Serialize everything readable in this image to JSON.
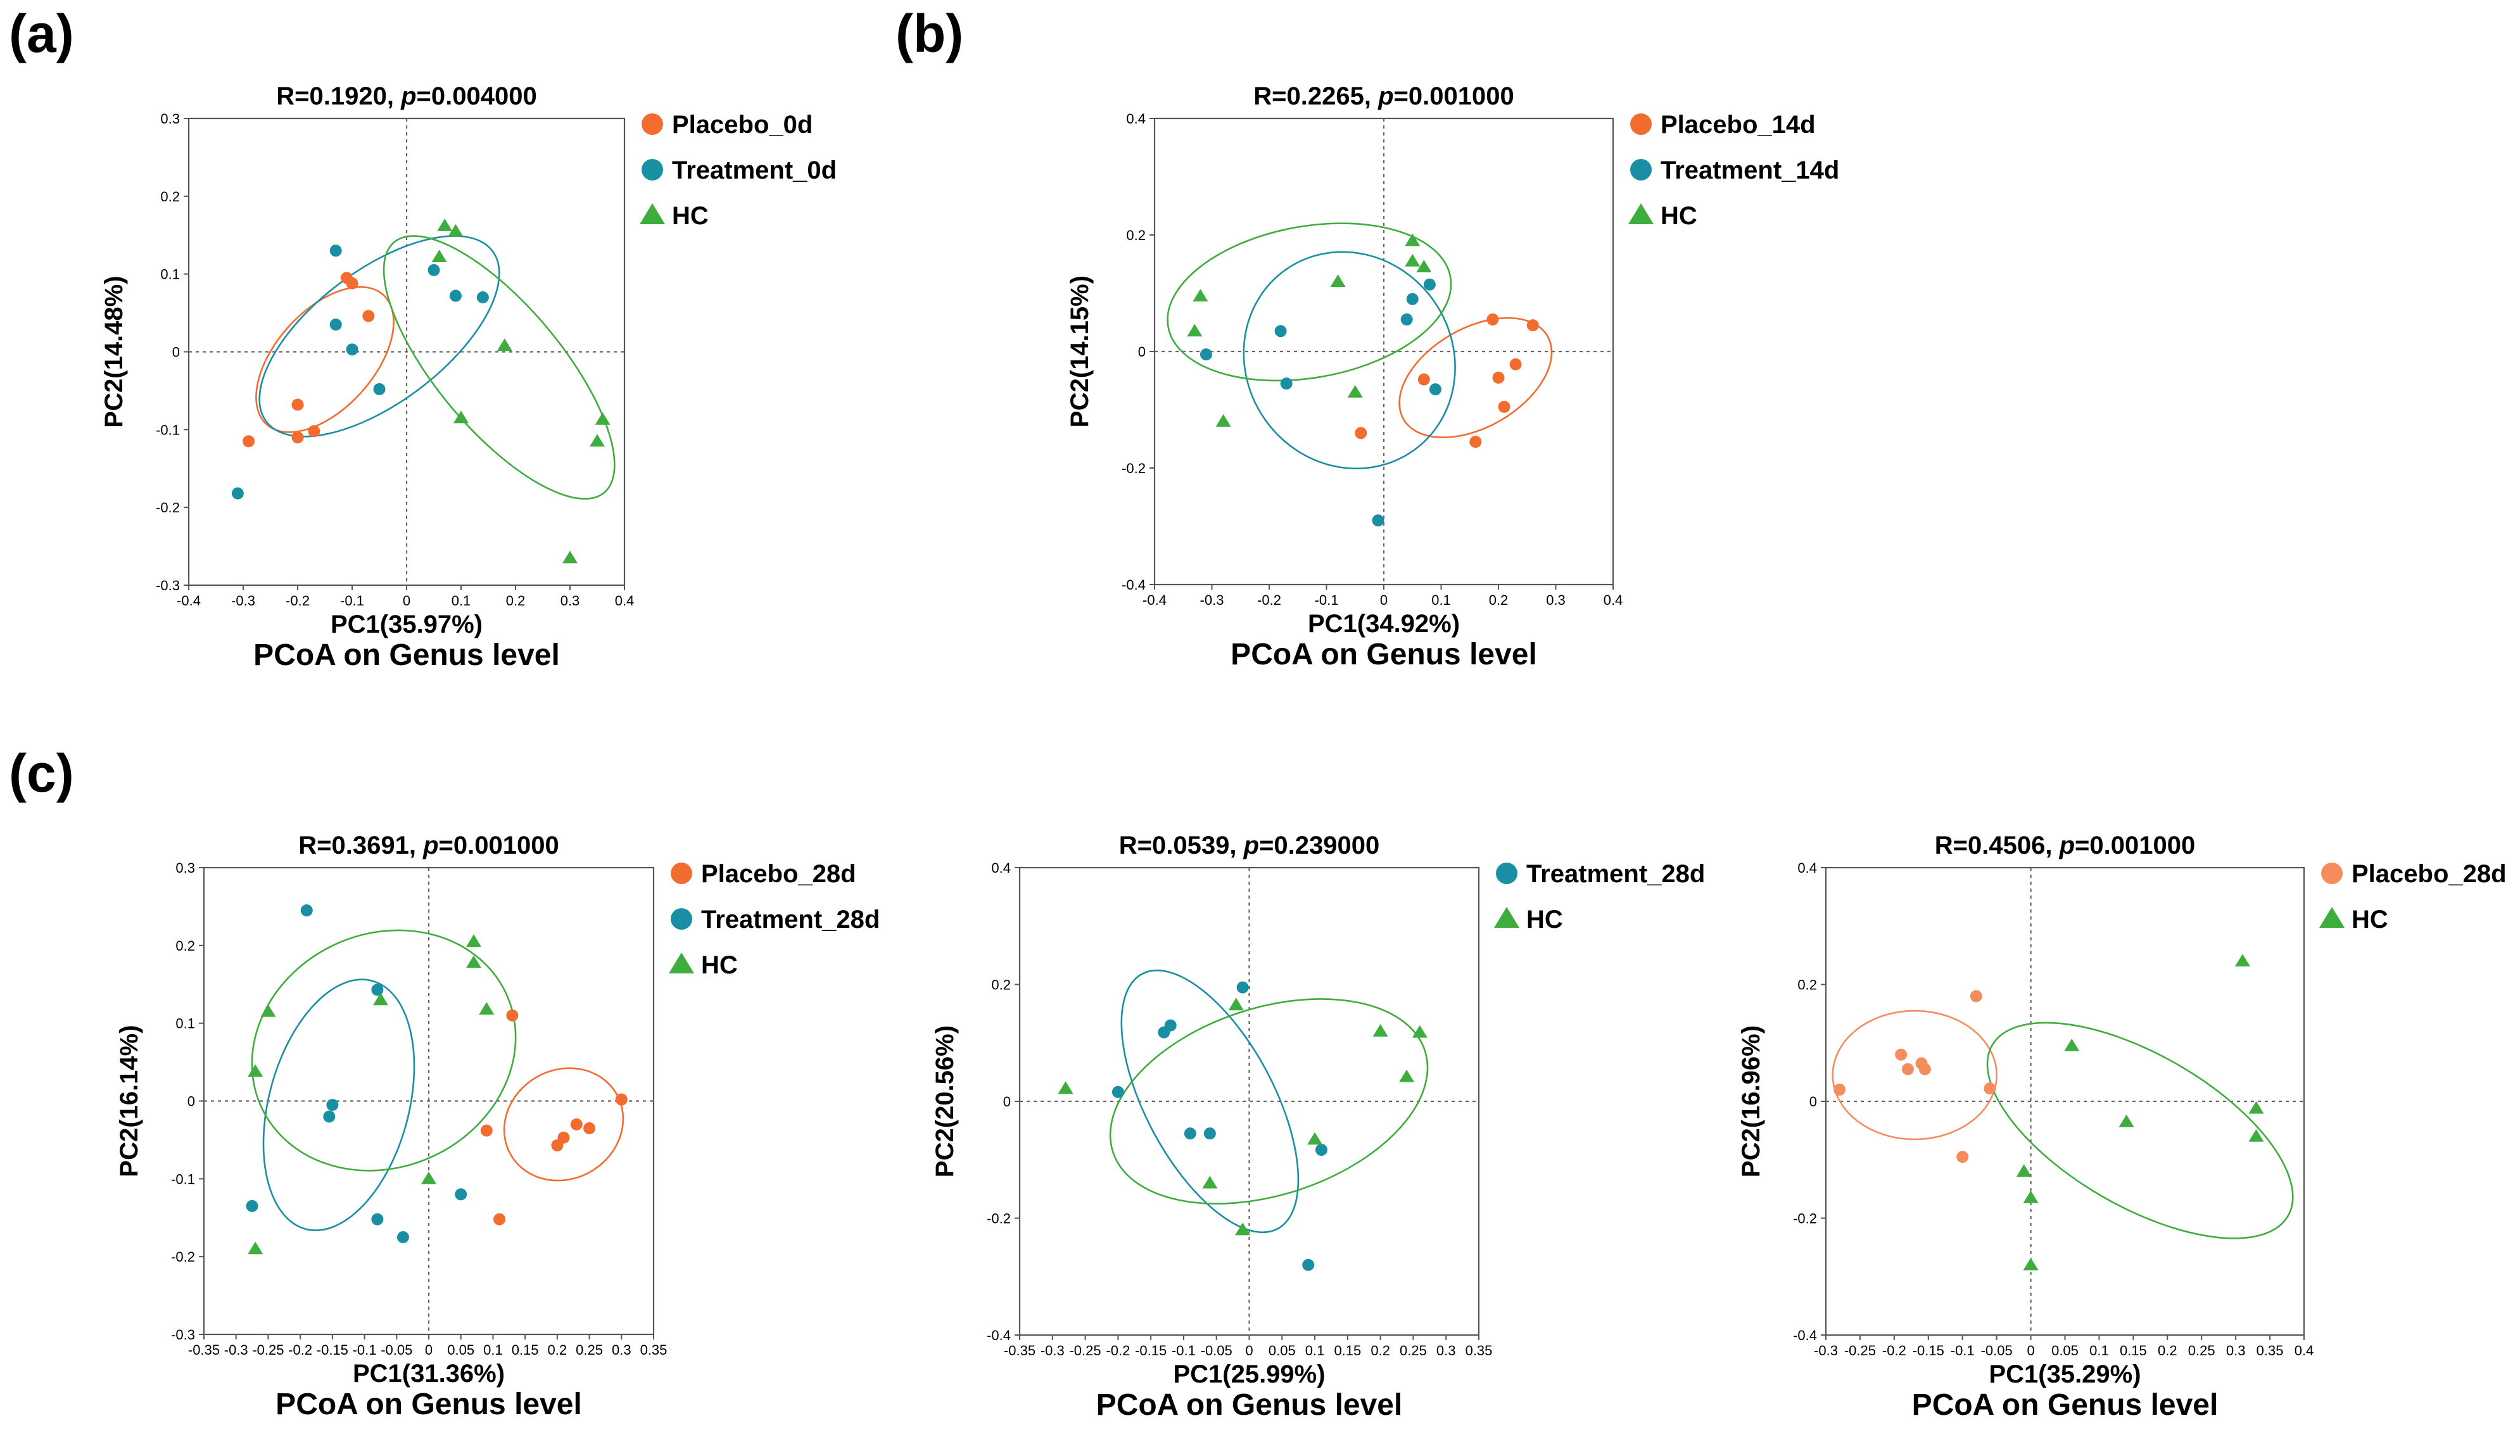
{
  "figure": {
    "panel_labels": [
      "(a)",
      "(b)",
      "(c)"
    ],
    "colors": {
      "placebo": "#f26b2f",
      "placebo_light": "#f58c5d",
      "treatment": "#1a8fa3",
      "hc": "#3ead3e"
    }
  },
  "chart_data": [
    {
      "type": "scatter",
      "title": {
        "prefix": "R=0.1920, ",
        "p_symbol": "p",
        "p_value": "=0.004000"
      },
      "xlabel": "PC1(35.97%)",
      "ylabel": "PC2(14.48%)",
      "footer": "PCoA on Genus level",
      "xlim": [
        -0.4,
        0.4
      ],
      "ylim": [
        -0.3,
        0.3
      ],
      "xticks": [
        -0.4,
        -0.3,
        -0.2,
        -0.1,
        0,
        0.1,
        0.2,
        0.3,
        0.4
      ],
      "xtick_labels": [
        "-0.4",
        "-0.3",
        "-0.2",
        "-0.1",
        "0",
        "0.1",
        "0.2",
        "0.3",
        "0.4"
      ],
      "yticks": [
        -0.3,
        -0.2,
        -0.1,
        0,
        0.1,
        0.2,
        0.3
      ],
      "ytick_labels": [
        "-0.3",
        "-0.2",
        "-0.1",
        "0",
        "0.1",
        "0.2",
        "0.3"
      ],
      "grid": false,
      "legend_position": "right",
      "series": [
        {
          "name": "Placebo_0d",
          "color": "#f26b2f",
          "marker": "circle",
          "points": [
            [
              -0.11,
              0.095
            ],
            [
              -0.1,
              0.088
            ],
            [
              -0.07,
              0.046
            ],
            [
              -0.29,
              -0.115
            ],
            [
              -0.2,
              -0.068
            ],
            [
              -0.2,
              -0.11
            ],
            [
              -0.17,
              -0.102
            ]
          ],
          "ellipse": {
            "cx": -0.15,
            "cy": -0.01,
            "rx": 0.16,
            "ry": 0.063,
            "angle_deg": 48
          }
        },
        {
          "name": "Treatment_0d",
          "color": "#1a8fa3",
          "marker": "circle",
          "points": [
            [
              -0.13,
              0.13
            ],
            [
              -0.13,
              0.035
            ],
            [
              -0.1,
              0.003
            ],
            [
              -0.05,
              -0.048
            ],
            [
              0.05,
              0.105
            ],
            [
              0.09,
              0.072
            ],
            [
              0.14,
              0.07
            ],
            [
              -0.31,
              -0.182
            ]
          ],
          "ellipse": {
            "cx": -0.05,
            "cy": 0.02,
            "rx": 0.26,
            "ry": 0.085,
            "angle_deg": 37
          }
        },
        {
          "name": "HC",
          "color": "#3ead3e",
          "marker": "triangle",
          "points": [
            [
              0.06,
              0.122
            ],
            [
              0.07,
              0.162
            ],
            [
              0.09,
              0.155
            ],
            [
              0.18,
              0.008
            ],
            [
              0.1,
              -0.085
            ],
            [
              0.3,
              -0.265
            ],
            [
              0.35,
              -0.115
            ],
            [
              0.36,
              -0.087
            ]
          ],
          "ellipse": {
            "cx": 0.17,
            "cy": -0.02,
            "rx": 0.3,
            "ry": 0.08,
            "angle_deg": -50
          }
        }
      ]
    },
    {
      "type": "scatter",
      "title": {
        "prefix": "R=0.2265, ",
        "p_symbol": "p",
        "p_value": "=0.001000"
      },
      "xlabel": "PC1(34.92%)",
      "ylabel": "PC2(14.15%)",
      "footer": "PCoA on Genus level",
      "xlim": [
        -0.4,
        0.4
      ],
      "ylim": [
        -0.4,
        0.4
      ],
      "xticks": [
        -0.4,
        -0.3,
        -0.2,
        -0.1,
        0,
        0.1,
        0.2,
        0.3,
        0.4
      ],
      "xtick_labels": [
        "-0.4",
        "-0.3",
        "-0.2",
        "-0.1",
        "0",
        "0.1",
        "0.2",
        "0.3",
        "0.4"
      ],
      "yticks": [
        -0.4,
        -0.2,
        0,
        0.2,
        0.4
      ],
      "ytick_labels": [
        "-0.4",
        "-0.2",
        "0",
        "0.2",
        "0.4"
      ],
      "grid": false,
      "legend_position": "right",
      "series": [
        {
          "name": "Placebo_14d",
          "color": "#f26b2f",
          "marker": "circle",
          "points": [
            [
              0.19,
              0.055
            ],
            [
              0.26,
              0.045
            ],
            [
              0.23,
              -0.022
            ],
            [
              0.2,
              -0.045
            ],
            [
              0.21,
              -0.095
            ],
            [
              0.07,
              -0.048
            ],
            [
              0.16,
              -0.155
            ],
            [
              -0.04,
              -0.14
            ]
          ],
          "ellipse": {
            "cx": 0.16,
            "cy": -0.045,
            "rx": 0.145,
            "ry": 0.085,
            "angle_deg": 30
          }
        },
        {
          "name": "Treatment_14d",
          "color": "#1a8fa3",
          "marker": "circle",
          "points": [
            [
              -0.31,
              -0.005
            ],
            [
              -0.18,
              0.035
            ],
            [
              -0.17,
              -0.055
            ],
            [
              0.04,
              0.055
            ],
            [
              0.05,
              0.09
            ],
            [
              0.08,
              0.115
            ],
            [
              0.09,
              -0.065
            ],
            [
              -0.01,
              -0.29
            ]
          ],
          "ellipse": {
            "cx": -0.06,
            "cy": -0.015,
            "rx": 0.18,
            "ry": 0.19,
            "angle_deg": 35
          }
        },
        {
          "name": "HC",
          "color": "#3ead3e",
          "marker": "triangle",
          "points": [
            [
              -0.32,
              0.095
            ],
            [
              -0.33,
              0.035
            ],
            [
              -0.28,
              -0.12
            ],
            [
              -0.08,
              0.12
            ],
            [
              -0.05,
              -0.07
            ],
            [
              0.05,
              0.19
            ],
            [
              0.05,
              0.155
            ],
            [
              0.07,
              0.145
            ]
          ],
          "ellipse": {
            "cx": -0.13,
            "cy": 0.085,
            "rx": 0.25,
            "ry": 0.13,
            "angle_deg": 10
          }
        }
      ]
    },
    {
      "type": "scatter",
      "title": {
        "prefix": "R=0.3691, ",
        "p_symbol": "p",
        "p_value": "=0.001000"
      },
      "xlabel": "PC1(31.36%)",
      "ylabel": "PC2(16.14%)",
      "footer": "PCoA on Genus level",
      "xlim": [
        -0.35,
        0.35
      ],
      "ylim": [
        -0.3,
        0.3
      ],
      "xticks": [
        -0.35,
        -0.3,
        -0.25,
        -0.2,
        -0.15,
        -0.1,
        -0.05,
        0,
        0.05,
        0.1,
        0.15,
        0.2,
        0.25,
        0.3,
        0.35
      ],
      "xtick_labels": [
        "-0.35",
        "-0.3",
        "-0.25",
        "-0.2",
        "-0.15",
        "-0.1",
        "-0.05",
        "0",
        "0.05",
        "0.1",
        "0.15",
        "0.2",
        "0.25",
        "0.3",
        "0.35"
      ],
      "yticks": [
        -0.3,
        -0.2,
        -0.1,
        0,
        0.1,
        0.2,
        0.3
      ],
      "ytick_labels": [
        "-0.3",
        "-0.2",
        "-0.1",
        "0",
        "0.1",
        "0.2",
        "0.3"
      ],
      "grid": false,
      "legend_position": "right",
      "series": [
        {
          "name": "Placebo_28d",
          "color": "#f26b2f",
          "marker": "circle",
          "points": [
            [
              0.13,
              0.11
            ],
            [
              0.3,
              0.002
            ],
            [
              0.23,
              -0.03
            ],
            [
              0.25,
              -0.035
            ],
            [
              0.21,
              -0.047
            ],
            [
              0.2,
              -0.057
            ],
            [
              0.09,
              -0.038
            ],
            [
              0.11,
              -0.152
            ]
          ],
          "ellipse": {
            "cx": 0.21,
            "cy": -0.03,
            "rx": 0.095,
            "ry": 0.07,
            "angle_deg": 30
          }
        },
        {
          "name": "Treatment_28d",
          "color": "#1a8fa3",
          "marker": "circle",
          "points": [
            [
              -0.19,
              0.245
            ],
            [
              -0.08,
              0.143
            ],
            [
              -0.15,
              -0.005
            ],
            [
              -0.155,
              -0.02
            ],
            [
              -0.275,
              -0.135
            ],
            [
              -0.08,
              -0.152
            ],
            [
              -0.04,
              -0.175
            ],
            [
              0.05,
              -0.12
            ]
          ],
          "ellipse": {
            "cx": -0.14,
            "cy": -0.005,
            "rx": 0.2,
            "ry": 0.09,
            "angle_deg": 75
          }
        },
        {
          "name": "HC",
          "color": "#3ead3e",
          "marker": "triangle",
          "points": [
            [
              -0.25,
              0.115
            ],
            [
              -0.27,
              0.038
            ],
            [
              -0.27,
              -0.19
            ],
            [
              -0.075,
              0.13
            ],
            [
              0.07,
              0.205
            ],
            [
              0.07,
              0.178
            ],
            [
              0.09,
              0.118
            ],
            [
              0.0,
              -0.1
            ]
          ],
          "ellipse": {
            "cx": -0.07,
            "cy": 0.065,
            "rx": 0.21,
            "ry": 0.15,
            "angle_deg": 25
          }
        }
      ]
    },
    {
      "type": "scatter",
      "title": {
        "prefix": "R=0.0539, ",
        "p_symbol": "p",
        "p_value": "=0.239000"
      },
      "xlabel": "PC1(25.99%)",
      "ylabel": "PC2(20.56%)",
      "footer": "PCoA on Genus level",
      "xlim": [
        -0.35,
        0.35
      ],
      "ylim": [
        -0.4,
        0.4
      ],
      "xticks": [
        -0.35,
        -0.3,
        -0.25,
        -0.2,
        -0.15,
        -0.1,
        -0.05,
        0,
        0.05,
        0.1,
        0.15,
        0.2,
        0.25,
        0.3,
        0.35
      ],
      "xtick_labels": [
        "-0.35",
        "-0.3",
        "-0.25",
        "-0.2",
        "-0.15",
        "-0.1",
        "-0.05",
        "0",
        "0.05",
        "0.1",
        "0.15",
        "0.2",
        "0.25",
        "0.3",
        "0.35"
      ],
      "yticks": [
        -0.4,
        -0.2,
        0,
        0.2,
        0.4
      ],
      "ytick_labels": [
        "-0.4",
        "-0.2",
        "0",
        "0.2",
        "0.4"
      ],
      "grid": false,
      "legend_position": "right",
      "series": [
        {
          "name": "Treatment_28d",
          "color": "#1a8fa3",
          "marker": "circle",
          "points": [
            [
              -0.01,
              0.195
            ],
            [
              -0.12,
              0.13
            ],
            [
              -0.13,
              0.118
            ],
            [
              -0.2,
              0.016
            ],
            [
              -0.09,
              -0.055
            ],
            [
              -0.06,
              -0.055
            ],
            [
              0.11,
              -0.083
            ],
            [
              0.09,
              -0.28
            ]
          ],
          "ellipse": {
            "cx": -0.06,
            "cy": 0.0,
            "rx": 0.22,
            "ry": 0.11,
            "angle_deg": -62
          }
        },
        {
          "name": "HC",
          "color": "#3ead3e",
          "marker": "triangle",
          "points": [
            [
              -0.28,
              0.022
            ],
            [
              -0.02,
              0.165
            ],
            [
              0.2,
              0.12
            ],
            [
              0.26,
              0.118
            ],
            [
              0.24,
              0.042
            ],
            [
              0.1,
              -0.065
            ],
            [
              -0.06,
              -0.14
            ],
            [
              -0.01,
              -0.22
            ]
          ],
          "ellipse": {
            "cx": 0.03,
            "cy": 0.0,
            "rx": 0.25,
            "ry": 0.16,
            "angle_deg": 18
          }
        }
      ]
    },
    {
      "type": "scatter",
      "title": {
        "prefix": "R=0.4506, ",
        "p_symbol": "p",
        "p_value": "=0.001000"
      },
      "xlabel": "PC1(35.29%)",
      "ylabel": "PC2(16.96%)",
      "footer": "PCoA on Genus level",
      "xlim": [
        -0.3,
        0.4
      ],
      "ylim": [
        -0.4,
        0.4
      ],
      "xticks": [
        -0.3,
        -0.25,
        -0.2,
        -0.15,
        -0.1,
        -0.05,
        0,
        0.05,
        0.1,
        0.15,
        0.2,
        0.25,
        0.3,
        0.35,
        0.4
      ],
      "xtick_labels": [
        "-0.3",
        "-0.25",
        "-0.2",
        "-0.15",
        "-0.1",
        "-0.05",
        "0",
        "0.05",
        "0.1",
        "0.15",
        "0.2",
        "0.25",
        "0.3",
        "0.35",
        "0.4"
      ],
      "yticks": [
        -0.4,
        -0.2,
        0,
        0.2,
        0.4
      ],
      "ytick_labels": [
        "-0.4",
        "-0.2",
        "0",
        "0.2",
        "0.4"
      ],
      "grid": false,
      "legend_position": "right",
      "series": [
        {
          "name": "Placebo_28d",
          "color": "#f58c5d",
          "marker": "circle",
          "points": [
            [
              -0.28,
              0.02
            ],
            [
              -0.19,
              0.08
            ],
            [
              -0.18,
              0.055
            ],
            [
              -0.16,
              0.065
            ],
            [
              -0.155,
              0.055
            ],
            [
              -0.08,
              0.18
            ],
            [
              -0.06,
              0.022
            ],
            [
              -0.1,
              -0.095
            ]
          ],
          "ellipse": {
            "cx": -0.17,
            "cy": 0.045,
            "rx": 0.12,
            "ry": 0.11,
            "angle_deg": 0
          }
        },
        {
          "name": "HC",
          "color": "#3ead3e",
          "marker": "triangle",
          "points": [
            [
              -0.01,
              -0.12
            ],
            [
              0.0,
              -0.165
            ],
            [
              0.0,
              -0.28
            ],
            [
              0.06,
              0.095
            ],
            [
              0.14,
              -0.035
            ],
            [
              0.31,
              0.24
            ],
            [
              0.33,
              -0.012
            ],
            [
              0.33,
              -0.06
            ]
          ],
          "ellipse": {
            "cx": 0.16,
            "cy": -0.05,
            "rx": 0.25,
            "ry": 0.13,
            "angle_deg": -30
          }
        }
      ]
    }
  ]
}
